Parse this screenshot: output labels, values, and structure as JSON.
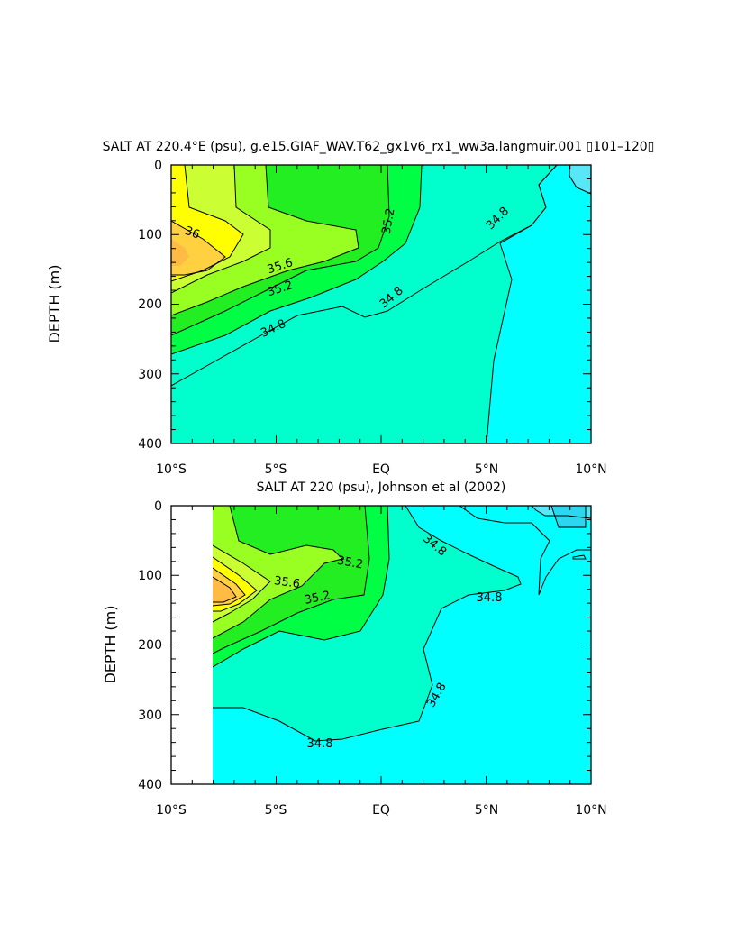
{
  "chart_data": [
    {
      "type": "contour",
      "title": "SALT AT 220.4°E (psu), g.e15.GIAF_WAV.T62_gx1v6_rx1_ww3a.langmuir.001 ▯101–120▯",
      "ylabel": "DEPTH (m)",
      "xlabel": "",
      "x_tick_labels": [
        "10°S",
        "5°S",
        "EQ",
        "5°N",
        "10°N"
      ],
      "y_tick_labels": [
        "0",
        "100",
        "200",
        "300",
        "400"
      ],
      "xlim": [
        -10,
        10
      ],
      "ylim": [
        400,
        0
      ],
      "contour_labels": [
        "36",
        "35.6",
        "35.2",
        "35.2",
        "34.8",
        "34.8",
        "34.8",
        "34.8"
      ],
      "fill_colors": {
        "c_lt_34_6": "#58e7f6",
        "c_34_6_34_8": "#00ffff",
        "c_34_8_35_0": "#00ffcc",
        "c_35_0_35_2": "#00ff44",
        "c_35_2_35_4": "#22ee22",
        "c_35_4_35_6": "#99ff22",
        "c_35_6_35_8": "#ccff33",
        "c_35_8_36_0": "#ffff00",
        "c_36_0_36_2": "#ffd040",
        "c_gt_36_2": "#ffbb44"
      }
    },
    {
      "type": "contour",
      "title": "SALT AT 220 (psu), Johnson et al (2002)",
      "ylabel": "DEPTH (m)",
      "xlabel": "",
      "x_tick_labels": [
        "10°S",
        "5°S",
        "EQ",
        "5°N",
        "10°N"
      ],
      "y_tick_labels": [
        "0",
        "100",
        "200",
        "300",
        "400"
      ],
      "xlim": [
        -10,
        10
      ],
      "ylim": [
        400,
        0
      ],
      "contour_labels": [
        "35.2",
        "35.6",
        "35.2",
        "34.8",
        "34.8",
        "34.8",
        "34.8"
      ]
    }
  ]
}
